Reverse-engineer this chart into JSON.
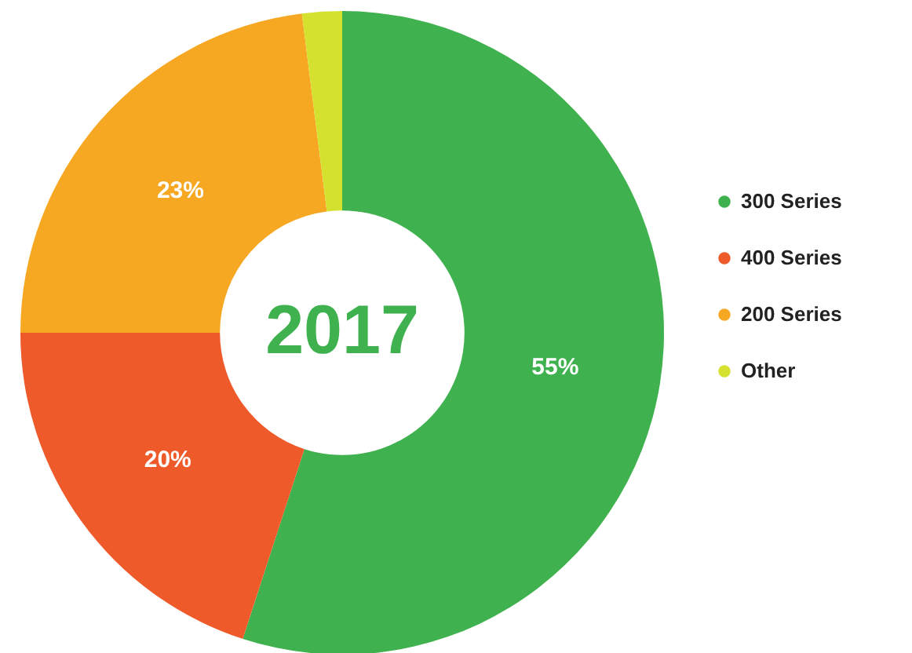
{
  "chart_data": {
    "type": "donut",
    "title": "2017",
    "categories": [
      "300 Series",
      "400 Series",
      "200 Series",
      "Other"
    ],
    "values": [
      55,
      20,
      23,
      2
    ],
    "colors": [
      "#3fb24f",
      "#ef5a2a",
      "#f7a823",
      "#d4e22f"
    ],
    "value_labels": [
      "55%",
      "20%",
      "23%",
      null
    ],
    "legend": "right"
  }
}
